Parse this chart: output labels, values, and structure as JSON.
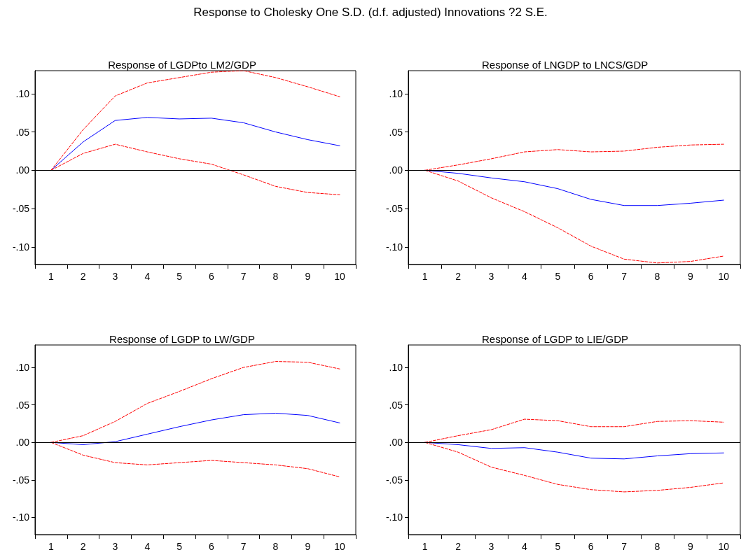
{
  "chart_data": [
    {
      "type": "line",
      "title": "Response of LGDPto LM2/GDP",
      "annotations": [
        "Response to Cholesky One S.D. (d.f. adjusted) Innovations ?2 S.E."
      ],
      "categories": [
        "1",
        "2",
        "3",
        "4",
        "5",
        "6",
        "7",
        "8",
        "9",
        "10"
      ],
      "ylim": [
        -0.123,
        0.13
      ],
      "yticks": [
        {
          "value": -0.1,
          "label": "-.10"
        },
        {
          "value": -0.05,
          "label": "-.05"
        },
        {
          "value": 0,
          "label": ".00"
        },
        {
          "value": 0.05,
          "label": ".05"
        },
        {
          "value": 0.1,
          "label": ".10"
        }
      ],
      "grid": false,
      "marker": "none",
      "ref_lines": [
        {
          "axis": "y",
          "value": 0,
          "color": "#000000"
        }
      ],
      "series": [
        {
          "color": "#0000ff",
          "line_style": "solid",
          "values": [
            0,
            0.037,
            0.065,
            0.069,
            0.067,
            0.068,
            0.062,
            0.05,
            0.04,
            0.032
          ]
        },
        {
          "color": "#ff0000",
          "line_style": "dashed",
          "values": [
            0,
            0.053,
            0.097,
            0.114,
            0.121,
            0.128,
            0.13,
            0.121,
            0.109,
            0.096
          ]
        },
        {
          "color": "#ff0000",
          "line_style": "dashed",
          "values": [
            0,
            0.022,
            0.034,
            0.024,
            0.015,
            0.008,
            -0.006,
            -0.021,
            -0.029,
            -0.032
          ]
        }
      ]
    },
    {
      "type": "line",
      "title": "Response of LNGDP to LNCS/GDP",
      "categories": [
        "1",
        "2",
        "3",
        "4",
        "5",
        "6",
        "7",
        "8",
        "9",
        "10"
      ],
      "ylim": [
        -0.123,
        0.13
      ],
      "yticks": [
        {
          "value": -0.1,
          "label": "-.10"
        },
        {
          "value": -0.05,
          "label": "-.05"
        },
        {
          "value": 0,
          "label": ".00"
        },
        {
          "value": 0.05,
          "label": ".05"
        },
        {
          "value": 0.1,
          "label": ".10"
        }
      ],
      "grid": false,
      "marker": "none",
      "ref_lines": [
        {
          "axis": "y",
          "value": 0,
          "color": "#000000"
        }
      ],
      "series": [
        {
          "color": "#0000ff",
          "line_style": "solid",
          "values": [
            0,
            -0.004,
            -0.01,
            -0.015,
            -0.024,
            -0.038,
            -0.046,
            -0.046,
            -0.043,
            -0.039
          ]
        },
        {
          "color": "#ff0000",
          "line_style": "dashed",
          "values": [
            0,
            0.007,
            0.015,
            0.024,
            0.027,
            0.024,
            0.025,
            0.03,
            0.033,
            0.034
          ]
        },
        {
          "color": "#ff0000",
          "line_style": "dashed",
          "values": [
            0,
            -0.014,
            -0.036,
            -0.054,
            -0.075,
            -0.099,
            -0.116,
            -0.121,
            -0.119,
            -0.112
          ]
        }
      ]
    },
    {
      "type": "line",
      "title": "Response of LGDP to LW/GDP",
      "categories": [
        "1",
        "2",
        "3",
        "4",
        "5",
        "6",
        "7",
        "8",
        "9",
        "10"
      ],
      "ylim": [
        -0.123,
        0.13
      ],
      "yticks": [
        {
          "value": -0.1,
          "label": "-.10"
        },
        {
          "value": -0.05,
          "label": "-.05"
        },
        {
          "value": 0,
          "label": ".00"
        },
        {
          "value": 0.05,
          "label": ".05"
        },
        {
          "value": 0.1,
          "label": ".10"
        }
      ],
      "grid": false,
      "marker": "none",
      "ref_lines": [
        {
          "axis": "y",
          "value": 0,
          "color": "#000000"
        }
      ],
      "series": [
        {
          "color": "#0000ff",
          "line_style": "solid",
          "values": [
            0,
            -0.003,
            0.001,
            0.011,
            0.021,
            0.03,
            0.037,
            0.039,
            0.036,
            0.026
          ]
        },
        {
          "color": "#ff0000",
          "line_style": "dashed",
          "values": [
            0,
            0.009,
            0.028,
            0.052,
            0.068,
            0.085,
            0.1,
            0.108,
            0.107,
            0.098
          ]
        },
        {
          "color": "#ff0000",
          "line_style": "dashed",
          "values": [
            0,
            -0.017,
            -0.027,
            -0.03,
            -0.027,
            -0.024,
            -0.027,
            -0.03,
            -0.035,
            -0.046
          ]
        }
      ]
    },
    {
      "type": "line",
      "title": "Response of LGDP to LIE/GDP",
      "categories": [
        "1",
        "2",
        "3",
        "4",
        "5",
        "6",
        "7",
        "8",
        "9",
        "10"
      ],
      "ylim": [
        -0.123,
        0.13
      ],
      "yticks": [
        {
          "value": -0.1,
          "label": "-.10"
        },
        {
          "value": -0.05,
          "label": "-.05"
        },
        {
          "value": 0,
          "label": ".00"
        },
        {
          "value": 0.05,
          "label": ".05"
        },
        {
          "value": 0.1,
          "label": ".10"
        }
      ],
      "grid": false,
      "marker": "none",
      "ref_lines": [
        {
          "axis": "y",
          "value": 0,
          "color": "#000000"
        }
      ],
      "series": [
        {
          "color": "#0000ff",
          "line_style": "solid",
          "values": [
            0,
            -0.003,
            -0.008,
            -0.007,
            -0.013,
            -0.021,
            -0.022,
            -0.018,
            -0.015,
            -0.014
          ]
        },
        {
          "color": "#ff0000",
          "line_style": "dashed",
          "values": [
            0,
            0.009,
            0.017,
            0.031,
            0.029,
            0.021,
            0.021,
            0.028,
            0.029,
            0.027
          ]
        },
        {
          "color": "#ff0000",
          "line_style": "dashed",
          "values": [
            0,
            -0.013,
            -0.033,
            -0.044,
            -0.056,
            -0.063,
            -0.066,
            -0.064,
            -0.06,
            -0.054
          ]
        }
      ]
    }
  ]
}
